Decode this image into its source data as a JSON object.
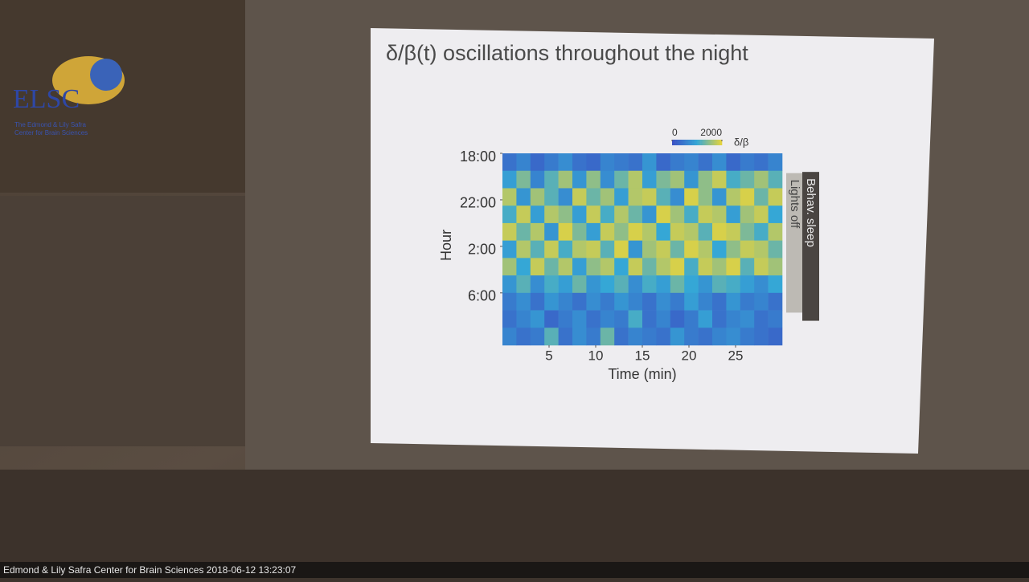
{
  "logo": {
    "acronym": "ELSC",
    "line1": "The Edmond & Lily Safra",
    "line2": "Center for Brain Sciences"
  },
  "slide": {
    "title": "δ/β(t) oscillations throughout the night",
    "chart": {
      "type": "heatmap",
      "xlabel": "Time (min)",
      "ylabel": "Hour",
      "xlim": [
        0,
        30
      ],
      "xticks": [
        5,
        10,
        15,
        20,
        25
      ],
      "ylim": [
        0,
        16.5
      ],
      "yticks": [
        {
          "value": 0,
          "label": "18:00"
        },
        {
          "value": 4,
          "label": "22:00"
        },
        {
          "value": 8,
          "label": "2:00"
        },
        {
          "value": 12,
          "label": "6:00"
        }
      ],
      "clim": [
        0,
        2000
      ],
      "cticks": [
        0,
        2000
      ],
      "clabel": "δ/β",
      "colors": [
        "#3b4fc4",
        "#35a7d6",
        "#e9d43a"
      ],
      "values": [
        [
          400,
          600,
          300,
          500,
          700,
          400,
          300,
          600,
          500,
          400,
          800,
          300,
          500,
          600,
          400,
          700,
          300,
          500,
          400,
          600
        ],
        [
          900,
          1400,
          600,
          1200,
          1600,
          800,
          1500,
          700,
          1300,
          1700,
          900,
          1400,
          1600,
          800,
          1500,
          1800,
          1100,
          1300,
          1600,
          1200
        ],
        [
          1700,
          800,
          1600,
          1200,
          700,
          1800,
          1300,
          1600,
          900,
          1700,
          1800,
          1200,
          700,
          1900,
          1500,
          800,
          1700,
          1900,
          1300,
          1800
        ],
        [
          1100,
          1800,
          900,
          1700,
          1500,
          900,
          1800,
          1100,
          1700,
          1300,
          800,
          1900,
          1600,
          1100,
          1800,
          1700,
          900,
          1600,
          1800,
          1000
        ],
        [
          1800,
          1300,
          1700,
          800,
          1900,
          1400,
          900,
          1800,
          1500,
          1900,
          1700,
          1000,
          1800,
          1700,
          1200,
          1900,
          1800,
          1400,
          1100,
          1700
        ],
        [
          900,
          1700,
          1200,
          1800,
          1100,
          1700,
          1800,
          1200,
          1900,
          800,
          1600,
          1800,
          1300,
          1900,
          1700,
          1000,
          1500,
          1800,
          1700,
          1300
        ],
        [
          1600,
          1000,
          1800,
          1300,
          1700,
          900,
          1500,
          1700,
          1000,
          1800,
          1300,
          1700,
          1900,
          1100,
          1800,
          1600,
          1900,
          1200,
          1800,
          1600
        ],
        [
          800,
          1200,
          700,
          1100,
          900,
          1300,
          800,
          1000,
          1200,
          700,
          1100,
          900,
          1300,
          1000,
          800,
          1200,
          1100,
          900,
          700,
          1000
        ],
        [
          500,
          700,
          400,
          800,
          600,
          400,
          700,
          500,
          800,
          600,
          400,
          700,
          500,
          900,
          600,
          400,
          800,
          500,
          600,
          400
        ],
        [
          400,
          600,
          800,
          300,
          500,
          700,
          400,
          600,
          500,
          1100,
          400,
          600,
          300,
          500,
          900,
          400,
          600,
          700,
          400,
          500
        ],
        [
          600,
          400,
          500,
          1200,
          400,
          700,
          500,
          1300,
          400,
          600,
          500,
          400,
          800,
          500,
          400,
          600,
          700,
          500,
          400,
          300
        ]
      ],
      "bands": [
        {
          "name": "Lights off",
          "start": 1.7,
          "end": 13.7,
          "color": "#bdbab4"
        },
        {
          "name": "Behav. sleep",
          "start": 1.6,
          "end": 14.4,
          "color": "#4a4542"
        }
      ]
    }
  },
  "footer": "Edmond & Lily Safra Center for Brain Sciences 2018-06-12 13:23:07"
}
